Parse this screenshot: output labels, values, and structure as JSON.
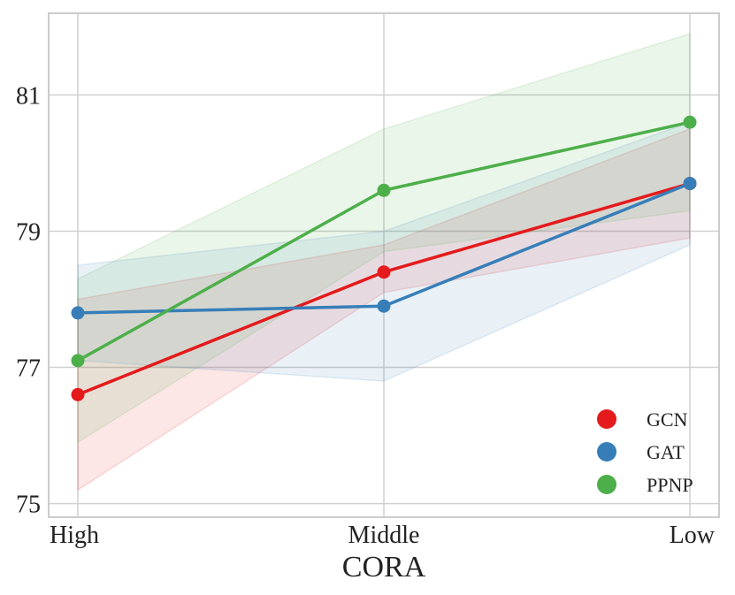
{
  "chart_data": {
    "type": "line",
    "title": "",
    "xlabel": "CORA",
    "ylabel": "",
    "categories": [
      "High",
      "Middle",
      "Low"
    ],
    "ylim": [
      74.8,
      82.2
    ],
    "yticks": [
      75,
      77,
      79,
      81
    ],
    "grid": true,
    "legend_position": "bottom-right",
    "series": [
      {
        "name": "GCN",
        "color": "#e41a1c",
        "values": [
          76.6,
          78.4,
          79.7
        ],
        "band_low": [
          75.2,
          78.1,
          78.9
        ],
        "band_high": [
          78.0,
          78.8,
          80.5
        ]
      },
      {
        "name": "GAT",
        "color": "#377eb8",
        "values": [
          77.8,
          77.9,
          79.7
        ],
        "band_low": [
          77.1,
          76.8,
          78.8
        ],
        "band_high": [
          78.5,
          79.0,
          80.6
        ]
      },
      {
        "name": "PPNP",
        "color": "#4daf4a",
        "values": [
          77.1,
          79.6,
          80.6
        ],
        "band_low": [
          75.9,
          78.7,
          79.3
        ],
        "band_high": [
          78.3,
          80.5,
          81.9
        ]
      }
    ]
  }
}
